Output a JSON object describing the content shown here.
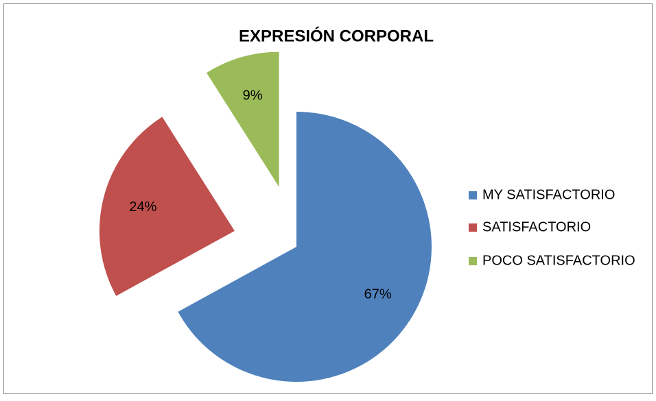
{
  "chart_data": {
    "type": "pie",
    "title": "EXPRESIÓN CORPORAL",
    "categories": [
      "MY SATISFACTORIO",
      "SATISFACTORIO",
      "POCO SATISFACTORIO"
    ],
    "values": [
      67,
      24,
      9
    ],
    "value_labels": [
      "67%",
      "24%",
      "9%"
    ],
    "colors": [
      "#4f81bd",
      "#c0504d",
      "#9bbb59"
    ],
    "legend": "right"
  }
}
